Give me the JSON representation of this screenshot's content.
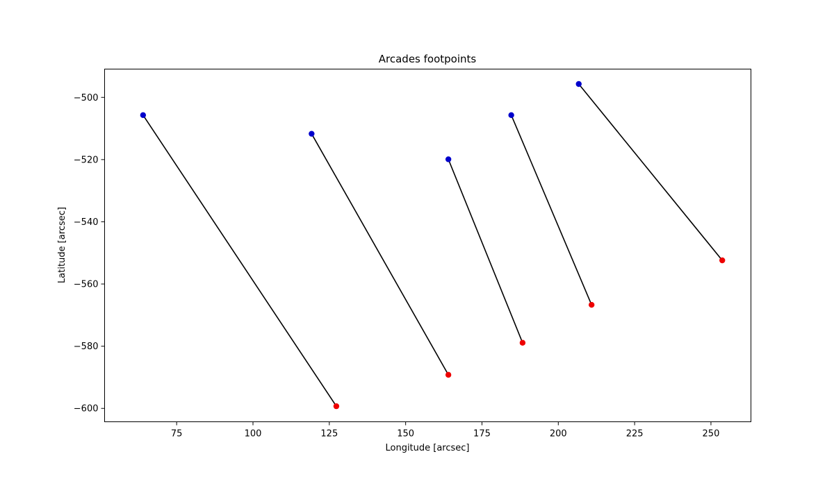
{
  "chart_data": {
    "type": "scatter",
    "title": "Arcades footpoints",
    "xlabel": "Longitude [arcsec]",
    "ylabel": "Latitude [arcsec]",
    "xlim": [
      51.4,
      263.1
    ],
    "ylim": [
      -604.3,
      -490.9
    ],
    "xticks": [
      75,
      100,
      125,
      150,
      175,
      200,
      225,
      250
    ],
    "yticks": [
      -600,
      -580,
      -560,
      -540,
      -520,
      -500
    ],
    "grid": false,
    "colors": {
      "start_point": "#0000cc",
      "end_point": "#ee0000",
      "connector": "#000000"
    },
    "arcades": [
      {
        "start": {
          "x": 64.0,
          "y": -505.7
        },
        "end": {
          "x": 127.3,
          "y": -599.3
        }
      },
      {
        "start": {
          "x": 119.2,
          "y": -511.7
        },
        "end": {
          "x": 164.0,
          "y": -589.2
        }
      },
      {
        "start": {
          "x": 164.0,
          "y": -519.9
        },
        "end": {
          "x": 188.3,
          "y": -578.9
        }
      },
      {
        "start": {
          "x": 184.6,
          "y": -505.7
        },
        "end": {
          "x": 210.9,
          "y": -566.7
        }
      },
      {
        "start": {
          "x": 206.7,
          "y": -495.7
        },
        "end": {
          "x": 253.7,
          "y": -552.4
        }
      }
    ]
  }
}
